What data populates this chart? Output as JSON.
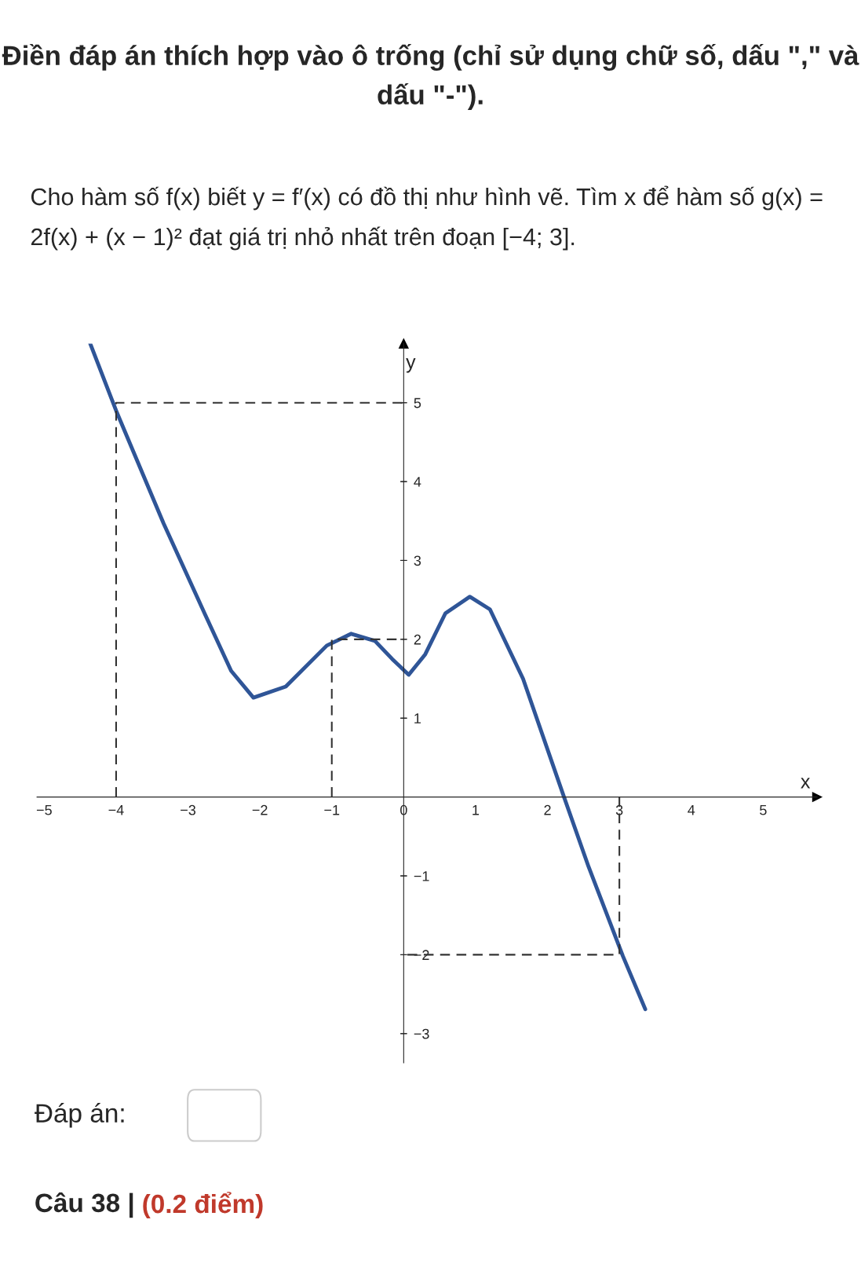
{
  "chart_data": {
    "type": "line",
    "title": "Điền đáp án thích hợp vào ô trống (chỉ sử dụng chữ số, dấu \",\" và dấu \"-\").",
    "subtitle": "Cho hàm số f(x) biết y = f′(x) có đồ thị như hình vẽ. Tìm x để hàm số g(x) = 2f(x) + (x − 1)² đạt giá trị nhỏ nhất trên đoạn [−4; 3].",
    "xlabel": "x",
    "ylabel": "y",
    "series": [
      {
        "color": "#2f5597",
        "line_style": "solid",
        "x": [
          -4.36,
          -4.0,
          -3.34,
          -2.77,
          -2.4,
          -2.09,
          -1.64,
          -1.07,
          -0.73,
          -0.4,
          -0.16,
          0.07,
          0.3,
          0.58,
          0.92,
          1.2,
          1.66,
          2.23,
          2.57,
          3.05,
          3.36
        ],
        "values": [
          5.75,
          4.9,
          3.47,
          2.33,
          1.6,
          1.26,
          1.4,
          1.92,
          2.07,
          1.98,
          1.75,
          1.55,
          1.81,
          2.33,
          2.54,
          2.38,
          1.5,
          0.0,
          -0.88,
          -2.02,
          -2.69
        ]
      },
      {
        "color": "#333333",
        "line_style": "dashed",
        "x": [
          -4,
          -4,
          0
        ],
        "values": [
          0,
          5,
          5
        ]
      },
      {
        "color": "#333333",
        "line_style": "dashed",
        "x": [
          -1,
          -1,
          0
        ],
        "values": [
          0,
          2,
          2
        ]
      },
      {
        "color": "#333333",
        "line_style": "dashed",
        "x": [
          3,
          3,
          0
        ],
        "values": [
          0,
          -2,
          -2
        ]
      }
    ],
    "xlim": [
      -5.1,
      5.75
    ],
    "ylim": [
      -3.37,
      5.75
    ],
    "xticks": [
      -5,
      -4,
      -3,
      -2,
      -1,
      0,
      1,
      2,
      3,
      4,
      5
    ],
    "yticks": [
      -3,
      -2,
      -1,
      1,
      2,
      3,
      4,
      5
    ],
    "grid": false,
    "legend": false,
    "annotations": [
      "Đáp án:",
      "Câu 38 |",
      "(0.2 điểm)"
    ]
  }
}
